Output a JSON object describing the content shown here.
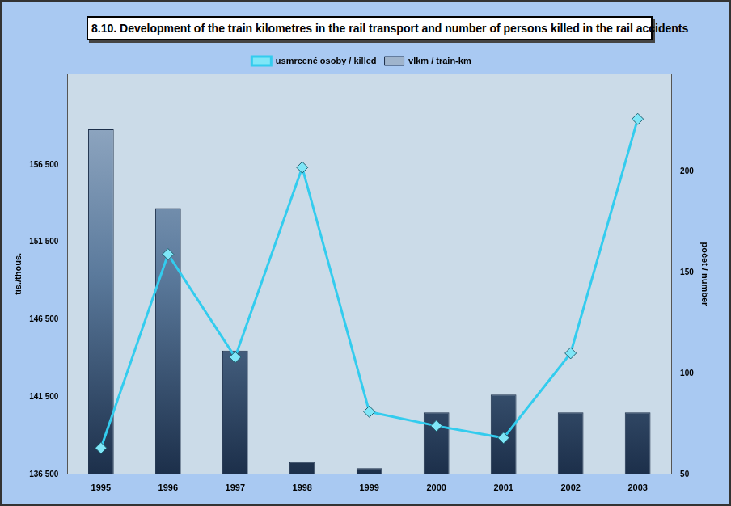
{
  "chart_data": {
    "type": "bar",
    "title": "8.10. Development of the train kilometres in the rail transport and number of persons killed in the rail accidents",
    "categories": [
      "1995",
      "1996",
      "1997",
      "1998",
      "1999",
      "2000",
      "2001",
      "2002",
      "2003"
    ],
    "series": [
      {
        "name": "vlkm / train-km",
        "type": "bar",
        "color": "#5b7a9c",
        "values": [
          158800,
          153700,
          144500,
          137300,
          136900,
          140500,
          141650,
          140500,
          140500
        ]
      },
      {
        "name": "usmrcené osoby / killed",
        "type": "line",
        "axis": "y2",
        "color": "#33ccee",
        "marker": "diamond",
        "values": [
          63,
          159,
          108,
          202,
          81,
          74,
          68,
          110,
          226
        ]
      }
    ],
    "ylabel": "tis./thous.",
    "y2label": "počet / number",
    "ylim": [
      136500,
      162400
    ],
    "yticks": [
      {
        "value": 136500,
        "label": "136 500"
      },
      {
        "value": 141500,
        "label": "141 500"
      },
      {
        "value": 146500,
        "label": "146 500"
      },
      {
        "value": 151500,
        "label": "151 500"
      },
      {
        "value": 156500,
        "label": "156 500"
      }
    ],
    "y2lim": [
      50,
      248.5
    ],
    "y2ticks": [
      50,
      100,
      150,
      200
    ],
    "grid": false,
    "legend": "top"
  }
}
